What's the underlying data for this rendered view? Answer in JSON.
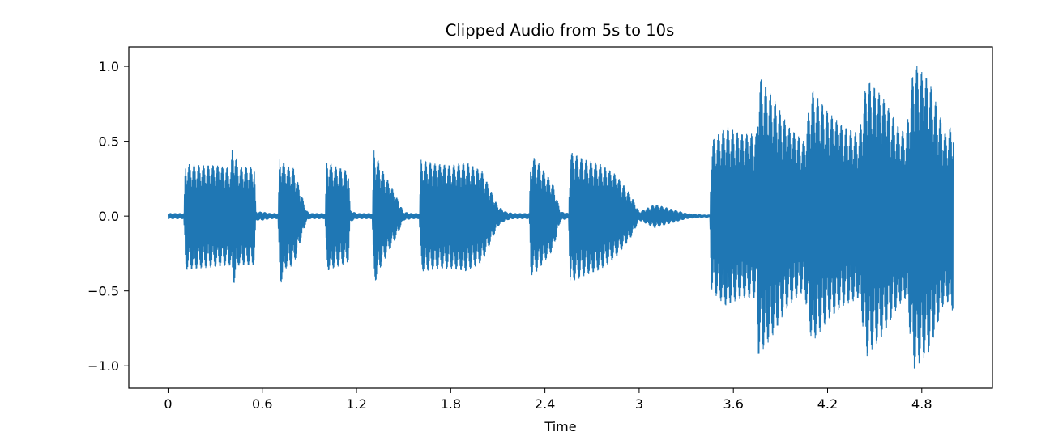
{
  "chart_data": {
    "type": "line",
    "title": "Clipped Audio from 5s to 10s",
    "xlabel": "Time",
    "ylabel": "",
    "xlim": [
      -0.25,
      5.25
    ],
    "ylim": [
      -1.15,
      1.13
    ],
    "xticks": [
      0,
      0.6,
      1.2,
      1.8,
      2.4,
      3,
      3.6,
      4.2,
      4.8
    ],
    "xtick_labels": [
      "0",
      "0.6",
      "1.2",
      "1.8",
      "2.4",
      "3",
      "3.6",
      "4.2",
      "4.8"
    ],
    "yticks": [
      1.0,
      0.5,
      0.0,
      -0.5,
      -1.0
    ],
    "ytick_labels": [
      "1.0",
      "0.5",
      "0.0",
      "−0.5",
      "−1.0"
    ],
    "grid": false,
    "series_color": "#1f77b4",
    "series": [
      {
        "x": [
          0.0,
          0.05,
          0.1,
          0.11,
          0.2,
          0.3,
          0.4,
          0.41,
          0.45,
          0.55,
          0.56,
          0.6,
          0.65,
          0.7,
          0.71,
          0.75,
          0.8,
          0.88,
          0.9,
          1.0,
          1.01,
          1.05,
          1.15,
          1.16,
          1.2,
          1.3,
          1.31,
          1.35,
          1.45,
          1.5,
          1.55,
          1.6,
          1.61,
          1.7,
          1.8,
          1.9,
          2.0,
          2.1,
          2.15,
          2.2,
          2.25,
          2.3,
          2.31,
          2.35,
          2.45,
          2.5,
          2.55,
          2.56,
          2.65,
          2.75,
          2.85,
          2.95,
          3.0,
          3.1,
          3.2,
          3.3,
          3.4,
          3.45,
          3.46,
          3.55,
          3.65,
          3.75,
          3.76,
          3.85,
          3.95,
          4.05,
          4.1,
          4.2,
          4.3,
          4.4,
          4.45,
          4.55,
          4.65,
          4.7,
          4.75,
          4.85,
          4.95,
          5.0
        ],
        "upper": [
          0.02,
          0.02,
          0.02,
          0.35,
          0.34,
          0.34,
          0.32,
          0.48,
          0.33,
          0.33,
          0.03,
          0.03,
          0.02,
          0.02,
          0.4,
          0.34,
          0.32,
          0.04,
          0.02,
          0.02,
          0.37,
          0.34,
          0.3,
          0.04,
          0.02,
          0.02,
          0.45,
          0.34,
          0.14,
          0.03,
          0.02,
          0.02,
          0.38,
          0.35,
          0.34,
          0.36,
          0.3,
          0.07,
          0.03,
          0.02,
          0.02,
          0.02,
          0.41,
          0.37,
          0.22,
          0.03,
          0.02,
          0.43,
          0.38,
          0.35,
          0.28,
          0.14,
          0.03,
          0.08,
          0.05,
          0.02,
          0.01,
          0.01,
          0.5,
          0.6,
          0.55,
          0.55,
          0.94,
          0.8,
          0.6,
          0.5,
          0.85,
          0.7,
          0.6,
          0.55,
          0.92,
          0.8,
          0.6,
          0.55,
          1.03,
          0.9,
          0.55,
          0.62
        ],
        "lower": [
          -0.02,
          -0.02,
          -0.02,
          -0.36,
          -0.35,
          -0.34,
          -0.33,
          -0.49,
          -0.33,
          -0.33,
          -0.03,
          -0.03,
          -0.02,
          -0.02,
          -0.48,
          -0.35,
          -0.33,
          -0.04,
          -0.02,
          -0.02,
          -0.37,
          -0.35,
          -0.31,
          -0.04,
          -0.02,
          -0.02,
          -0.47,
          -0.35,
          -0.15,
          -0.03,
          -0.02,
          -0.02,
          -0.37,
          -0.36,
          -0.35,
          -0.37,
          -0.31,
          -0.07,
          -0.03,
          -0.02,
          -0.02,
          -0.02,
          -0.4,
          -0.37,
          -0.23,
          -0.03,
          -0.02,
          -0.45,
          -0.4,
          -0.36,
          -0.28,
          -0.14,
          -0.03,
          -0.08,
          -0.05,
          -0.02,
          -0.01,
          -0.01,
          -0.5,
          -0.6,
          -0.55,
          -0.55,
          -0.94,
          -0.8,
          -0.6,
          -0.5,
          -0.85,
          -0.7,
          -0.6,
          -0.55,
          -0.94,
          -0.8,
          -0.6,
          -0.55,
          -1.03,
          -0.9,
          -0.55,
          -0.64
        ]
      }
    ]
  }
}
